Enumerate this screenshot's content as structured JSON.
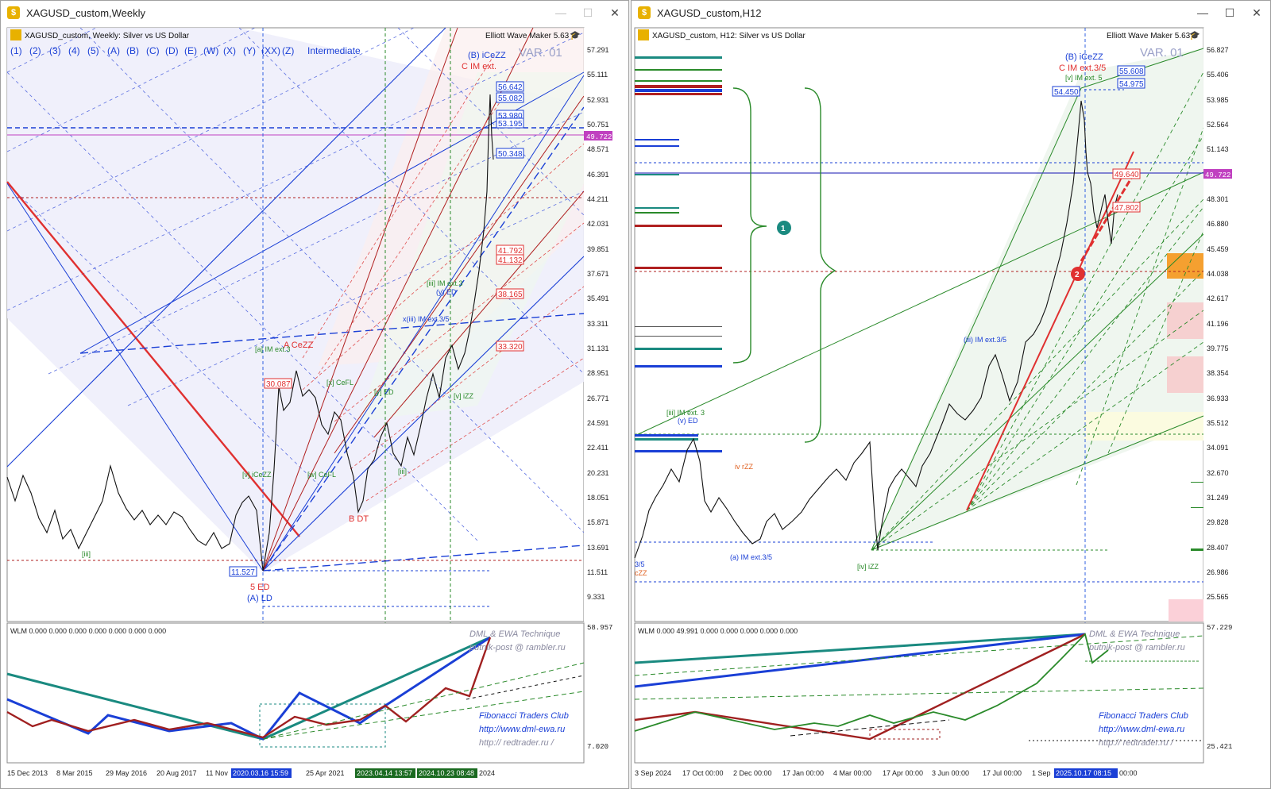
{
  "weekly": {
    "window_title": "XAGUSD_custom,Weekly",
    "chart_header": "XAGUSD_custom, Weekly:  Silver vs US Dollar",
    "plugin": "Elliott Wave Maker 5.63",
    "variant": "VAR. 01",
    "degree_label": "Intermediate",
    "degree_buttons": [
      "(1)",
      "(2)",
      "(3)",
      "(4)",
      "(5)",
      "(A)",
      "(B)",
      "(C)",
      "(D)",
      "(E)",
      "(W)",
      "(X)",
      "(Y)",
      "(XX)",
      "(Z)"
    ],
    "price_axis": [
      "57.291",
      "55.111",
      "52.931",
      "50.751",
      "48.571",
      "46.391",
      "44.211",
      "42.031",
      "39.851",
      "37.671",
      "35.491",
      "33.311",
      "31.131",
      "28.951",
      "26.771",
      "24.591",
      "22.411",
      "20.231",
      "18.051",
      "15.871",
      "13.691",
      "11.511",
      "9.331"
    ],
    "current_price": "49.722",
    "price_boxes": [
      "56.642",
      "55.082",
      "53.980",
      "53.195",
      "50.348",
      "41.792",
      "41.132",
      "38.165",
      "33.320",
      "30.087",
      "11.527"
    ],
    "wave_labels": {
      "top_blue": "(B) iCeZZ",
      "top_red": "C IM ext.",
      "acezz": "A CeZZ",
      "bdt": "B DT",
      "bottom_red": "5 ED",
      "bottom_blue": "(A) LD",
      "iii_ext": "[iii] IM ext.3",
      "yed": "(y) ED",
      "xiii": "x(iii) IM ext.3/5",
      "a_ext": "[a] IM ext.3",
      "iceZZ_green": "[v] iCeZZ",
      "cefl": "[w] CeFL",
      "xcefl": "[x] CeFL",
      "ized": "[y] ED",
      "izz": "[v] iZZ",
      "c_label": "[iii]",
      "left_iii": "[iii]"
    },
    "indicator_label": "WLM 0.000 0.000 0.000 0.000 0.000 0.000 0.000",
    "indicator_axis_top": "58.957",
    "indicator_axis_bottom": "7.020",
    "watermark": [
      "DML & EWA Technique",
      "putnik-post @ rambler.ru",
      "Fibonacci   Traders   Club",
      "http://www.dml-ewa.ru",
      "http://  redtrader.ru  /"
    ],
    "time_axis": [
      "15 Dec 2013",
      "8 Mar 2015",
      "29 May 2016",
      "20 Aug 2017",
      "11 Nov",
      "2020.03.16 15:59",
      "25 Apr 2021",
      "2023.04.14 13:57",
      "2024.10.23 08:48",
      "2024"
    ]
  },
  "h12": {
    "window_title": "XAGUSD_custom,H12",
    "chart_header": "XAGUSD_custom, H12:  Silver vs US Dollar",
    "plugin": "Elliott Wave Maker 5.63",
    "variant": "VAR. 01",
    "price_axis": [
      "56.827",
      "55.406",
      "53.985",
      "52.564",
      "51.143",
      "49.722",
      "48.301",
      "46.880",
      "45.459",
      "44.038",
      "42.617",
      "41.196",
      "39.775",
      "38.354",
      "36.933",
      "35.512",
      "34.091",
      "32.670",
      "31.249",
      "29.828",
      "28.407",
      "26.986",
      "25.565"
    ],
    "current_price": "49.722",
    "price_boxes": [
      "55.608",
      "54.975",
      "54.450",
      "49.640",
      "47.802"
    ],
    "wave_labels": {
      "top_blue": "(B) iCeZZ",
      "top_red": "C IM ext.3/5",
      "top_green": "[v] IM ext. 5",
      "iii_ext": "[iii] IM ext. 3",
      "ved": "(v) ED",
      "ivrzz": "iv rZZ",
      "aim": "(a) IM ext.3/5",
      "iiiim": "(iii) IM ext.3/5",
      "ivizz": "[iv] iZZ",
      "czz": "cZZ",
      "m35": "3/5"
    },
    "markers": [
      "1",
      "2"
    ],
    "indicator_label": "WLM 0.000 49.991 0.000 0.000 0.000 0.000 0.000",
    "indicator_axis_top": "57.229",
    "indicator_axis_bottom": "25.421",
    "watermark": [
      "DML & EWA Technique",
      "putnik-post @ rambler.ru",
      "Fibonacci   Traders   Club",
      "http://www.dml-ewa.ru",
      "http://  redtrader.ru  /"
    ],
    "time_axis": [
      "3 Sep 2024",
      "17 Oct 00:00",
      "2 Dec 00:00",
      "17 Jan 00:00",
      "4 Mar 00:00",
      "17 Apr 00:00",
      "3 Jun 00:00",
      "17 Jul 00:00",
      "1 Sep",
      "2025.10.17 08:15",
      "00:00"
    ]
  },
  "colors": {
    "up_blue": "#1a3fd6",
    "red": "#e03030",
    "dark_red": "#b02020",
    "green": "#2a8a2a",
    "teal": "#1a8a80",
    "current_price": "#c040c0",
    "crosshair": "#3060e0"
  },
  "icons": [
    "app-icon",
    "minimize-icon",
    "maximize-icon",
    "close-icon",
    "ewm-cap-icon"
  ]
}
